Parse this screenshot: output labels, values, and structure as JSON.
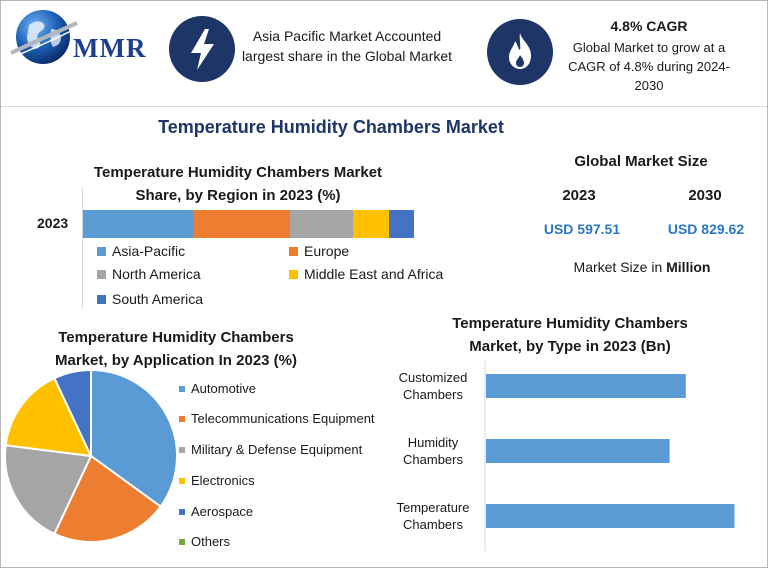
{
  "brand": {
    "logo_text": "MMR"
  },
  "highlights": [
    {
      "icon": "lightning-bolt-icon",
      "text": "Asia Pacific Market Accounted largest share in the Global Market"
    },
    {
      "icon": "flame-icon",
      "title": "4.8% CAGR",
      "text": "Global Market to grow at a CAGR of 4.8% during 2024-2030"
    }
  ],
  "main_title": "Temperature Humidity Chambers Market",
  "market_size": {
    "heading": "Global Market Size",
    "years": [
      "2023",
      "2030"
    ],
    "values": [
      "USD 597.51",
      "USD 829.62"
    ],
    "note_prefix": "Market Size in",
    "note_unit": "Million"
  },
  "colors": {
    "navy": "#1d3567",
    "blue": "#5b9bd5",
    "orange": "#ed7d31",
    "gray": "#a5a5a5",
    "yellow": "#ffc000",
    "darkblue": "#4472c4",
    "green": "#70ad47",
    "value_blue": "#2a77c0"
  },
  "chart_data": [
    {
      "type": "bar",
      "orientation": "horizontal",
      "stacked": true,
      "title_lines": [
        "Temperature Humidity Chambers Market",
        "Share, by Region in 2023 (%)"
      ],
      "categories": [
        "2023"
      ],
      "series": [
        {
          "name": "Asia-Pacific",
          "values": [
            33.5
          ],
          "color": "#5b9bd5"
        },
        {
          "name": "Europe",
          "values": [
            29
          ],
          "color": "#ed7d31"
        },
        {
          "name": "North America",
          "values": [
            19
          ],
          "color": "#a5a5a5"
        },
        {
          "name": "Middle East and Africa",
          "values": [
            11
          ],
          "color": "#ffc000"
        },
        {
          "name": "South America",
          "values": [
            7.5
          ],
          "color": "#4472c4"
        }
      ],
      "legend_position": "bottom"
    },
    {
      "type": "pie",
      "title_lines": [
        "Temperature Humidity Chambers",
        "Market, by Application In 2023 (%)"
      ],
      "slices": [
        {
          "label": "Automotive",
          "value": 35,
          "color": "#5b9bd5"
        },
        {
          "label": "Telecommunications Equipment",
          "value": 22,
          "color": "#ed7d31"
        },
        {
          "label": "Military & Defense Equipment",
          "value": 20,
          "color": "#a5a5a5"
        },
        {
          "label": "Electronics",
          "value": 16,
          "color": "#ffc000"
        },
        {
          "label": "Aerospace",
          "value": 7,
          "color": "#4472c4"
        },
        {
          "label": "Others",
          "value": 0,
          "color": "#70ad47"
        }
      ],
      "start_angle_deg": 0,
      "direction": "clockwise",
      "legend_position": "right"
    },
    {
      "type": "bar",
      "orientation": "horizontal",
      "title_lines": [
        "Temperature Humidity Chambers",
        "Market, by Type in 2023 (Bn)"
      ],
      "categories": [
        [
          "Customized",
          "Chambers"
        ],
        [
          "Humidity",
          "Chambers"
        ],
        [
          "Temperature",
          "Chambers"
        ]
      ],
      "values": [
        0.185,
        0.17,
        0.23
      ],
      "xlim": [
        0,
        0.25
      ],
      "color": "#5b9bd5",
      "axis_ticks_visible": false,
      "grid": false
    }
  ]
}
